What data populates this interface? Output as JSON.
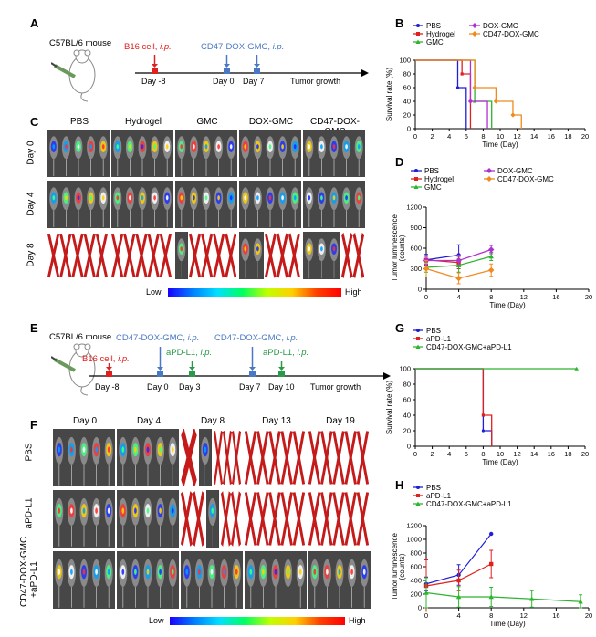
{
  "panels": {
    "A": "A",
    "B": "B",
    "C": "C",
    "D": "D",
    "E": "E",
    "F": "F",
    "G": "G",
    "H": "H"
  },
  "schemeA": {
    "mouse": "C57BL/6 mouse",
    "inj1_text": "B16 cell, ",
    "inj1_ip": "i.p.",
    "inj2_text": "CD47-DOX-GMC, ",
    "inj2_ip": "i.p.",
    "days": [
      "Day -8",
      "Day 0",
      "Day 7"
    ],
    "end": "Tumor growth"
  },
  "schemeE": {
    "mouse": "C57BL/6 mouse",
    "b16_text": "B16 cell, ",
    "b16_ip": "i.p.",
    "cd1_text": "CD47-DOX-GMC, ",
    "cd1_ip": "i.p.",
    "cd2_text": "CD47-DOX-GMC, ",
    "cd2_ip": "i.p.",
    "apd1_text": "aPD-L1, ",
    "apd1_ip": "i.p.",
    "apd2_text": "aPD-L1, ",
    "apd2_ip": "i.p.",
    "days": [
      "Day -8",
      "Day 0",
      "Day 3",
      "Day 7",
      "Day 10"
    ],
    "end": "Tumor growth"
  },
  "panelC": {
    "columns": [
      "PBS",
      "Hydrogel",
      "GMC",
      "DOX-GMC",
      "CD47-DOX-GMC"
    ],
    "rows": [
      "Day 0",
      "Day 4",
      "Day 8"
    ],
    "low": "Low",
    "high": "High"
  },
  "panelF": {
    "columns": [
      "Day 0",
      "Day 4",
      "Day 8",
      "Day 13",
      "Day 19"
    ],
    "rows": [
      "PBS",
      "aPD-L1",
      "CD47-DOX-GMC\n+aPD-L1"
    ],
    "low": "Low",
    "high": "High"
  },
  "colors": {
    "blue": "#1f1fd6",
    "red": "#e0201e",
    "green": "#2db52d",
    "purple": "#b030d0",
    "orange": "#f08a1e",
    "scheme_red": "#e0201e",
    "scheme_blue": "#4a78c4",
    "scheme_green": "#2a9a4a",
    "cross": "#c41a1a"
  },
  "chart_data": [
    {
      "id": "B",
      "type": "line",
      "xlabel": "Time (Day)",
      "ylabel": "Survival rate (%)",
      "xlim": [
        0,
        20
      ],
      "ylim": [
        0,
        100
      ],
      "xticks": [
        0,
        2,
        4,
        6,
        8,
        10,
        12,
        14,
        16,
        18,
        20
      ],
      "yticks": [
        0,
        20,
        40,
        60,
        80,
        100
      ],
      "legend": [
        "PBS",
        "Hydrogel",
        "GMC",
        "DOX-GMC",
        "CD47-DOX-GMC"
      ],
      "series": [
        {
          "name": "PBS",
          "color": "blue",
          "steps": [
            [
              0,
              100
            ],
            [
              5,
              100
            ],
            [
              5,
              60
            ],
            [
              6,
              60
            ],
            [
              6,
              0
            ]
          ]
        },
        {
          "name": "Hydrogel",
          "color": "red",
          "steps": [
            [
              0,
              100
            ],
            [
              5.5,
              100
            ],
            [
              5.5,
              80
            ],
            [
              6.5,
              80
            ],
            [
              6.5,
              0
            ]
          ]
        },
        {
          "name": "GMC",
          "color": "green",
          "steps": [
            [
              0,
              100
            ],
            [
              7,
              100
            ],
            [
              7,
              40
            ],
            [
              9,
              40
            ],
            [
              9,
              0
            ]
          ]
        },
        {
          "name": "DOX-GMC",
          "color": "purple",
          "steps": [
            [
              0,
              100
            ],
            [
              6.5,
              100
            ],
            [
              6.5,
              40
            ],
            [
              8.5,
              40
            ],
            [
              8.5,
              0
            ]
          ]
        },
        {
          "name": "CD47-DOX-GMC",
          "color": "orange",
          "steps": [
            [
              0,
              100
            ],
            [
              7,
              100
            ],
            [
              7,
              60
            ],
            [
              9.5,
              60
            ],
            [
              9.5,
              40
            ],
            [
              11.5,
              40
            ],
            [
              11.5,
              20
            ],
            [
              12.5,
              20
            ],
            [
              12.5,
              0
            ]
          ]
        }
      ]
    },
    {
      "id": "D",
      "type": "line",
      "xlabel": "Time (Day)",
      "ylabel": "Tumor luminescence\n(counts)",
      "xlim": [
        0,
        20
      ],
      "ylim": [
        0,
        1200
      ],
      "xticks": [
        0,
        4,
        8,
        12,
        16,
        20
      ],
      "yticks": [
        0,
        300,
        600,
        900,
        1200
      ],
      "legend": [
        "PBS",
        "Hydrogel",
        "GMC",
        "DOX-GMC",
        "CD47-DOX-GMC"
      ],
      "series": [
        {
          "name": "PBS",
          "color": "blue",
          "x": [
            0,
            4
          ],
          "y": [
            430,
            500
          ],
          "err": [
            80,
            150
          ]
        },
        {
          "name": "Hydrogel",
          "color": "red",
          "x": [
            0,
            4
          ],
          "y": [
            430,
            390
          ],
          "err": [
            60,
            90
          ]
        },
        {
          "name": "GMC",
          "color": "green",
          "x": [
            0,
            4,
            8
          ],
          "y": [
            320,
            350,
            480
          ],
          "err": [
            70,
            100,
            60
          ]
        },
        {
          "name": "DOX-GMC",
          "color": "purple",
          "x": [
            0,
            4,
            8
          ],
          "y": [
            420,
            420,
            580
          ],
          "err": [
            60,
            80,
            60
          ]
        },
        {
          "name": "CD47-DOX-GMC",
          "color": "orange",
          "x": [
            0,
            4,
            8
          ],
          "y": [
            300,
            160,
            280
          ],
          "err": [
            120,
            80,
            90
          ]
        }
      ]
    },
    {
      "id": "G",
      "type": "line",
      "xlabel": "Time (Day)",
      "ylabel": "Survival rate (%)",
      "xlim": [
        0,
        20
      ],
      "ylim": [
        0,
        100
      ],
      "xticks": [
        0,
        2,
        4,
        6,
        8,
        10,
        12,
        14,
        16,
        18,
        20
      ],
      "yticks": [
        0,
        20,
        40,
        60,
        80,
        100
      ],
      "legend": [
        "PBS",
        "aPD-L1",
        "CD47-DOX-GMC+aPD-L1"
      ],
      "series": [
        {
          "name": "PBS",
          "color": "blue",
          "steps": [
            [
              0,
              100
            ],
            [
              8,
              100
            ],
            [
              8,
              20
            ],
            [
              9,
              20
            ],
            [
              9,
              0
            ]
          ]
        },
        {
          "name": "aPD-L1",
          "color": "red",
          "steps": [
            [
              0,
              100
            ],
            [
              8,
              100
            ],
            [
              8,
              40
            ],
            [
              9,
              40
            ],
            [
              9,
              0
            ]
          ]
        },
        {
          "name": "CD47-DOX-GMC+aPD-L1",
          "color": "green",
          "steps": [
            [
              0,
              100
            ],
            [
              19,
              100
            ]
          ]
        }
      ]
    },
    {
      "id": "H",
      "type": "line",
      "xlabel": "Time (Day)",
      "ylabel": "Tumor luminescence\n(counts)",
      "xlim": [
        0,
        20
      ],
      "ylim": [
        0,
        1200
      ],
      "xticks": [
        0,
        4,
        8,
        12,
        16,
        20
      ],
      "yticks": [
        0,
        200,
        400,
        600,
        800,
        1000,
        1200
      ],
      "legend": [
        "PBS",
        "aPD-L1",
        "CD47-DOX-GMC+aPD-L1"
      ],
      "series": [
        {
          "name": "PBS",
          "color": "blue",
          "x": [
            0,
            4,
            8
          ],
          "y": [
            350,
            480,
            1080
          ],
          "err": [
            100,
            150,
            0
          ]
        },
        {
          "name": "aPD-L1",
          "color": "red",
          "x": [
            0,
            4,
            8
          ],
          "y": [
            320,
            400,
            640
          ],
          "err": [
            380,
            150,
            200
          ]
        },
        {
          "name": "CD47-DOX-GMC+aPD-L1",
          "color": "green",
          "x": [
            0,
            4,
            8,
            13,
            19
          ],
          "y": [
            220,
            160,
            160,
            130,
            90
          ],
          "err": [
            220,
            150,
            140,
            120,
            100
          ]
        }
      ]
    }
  ]
}
